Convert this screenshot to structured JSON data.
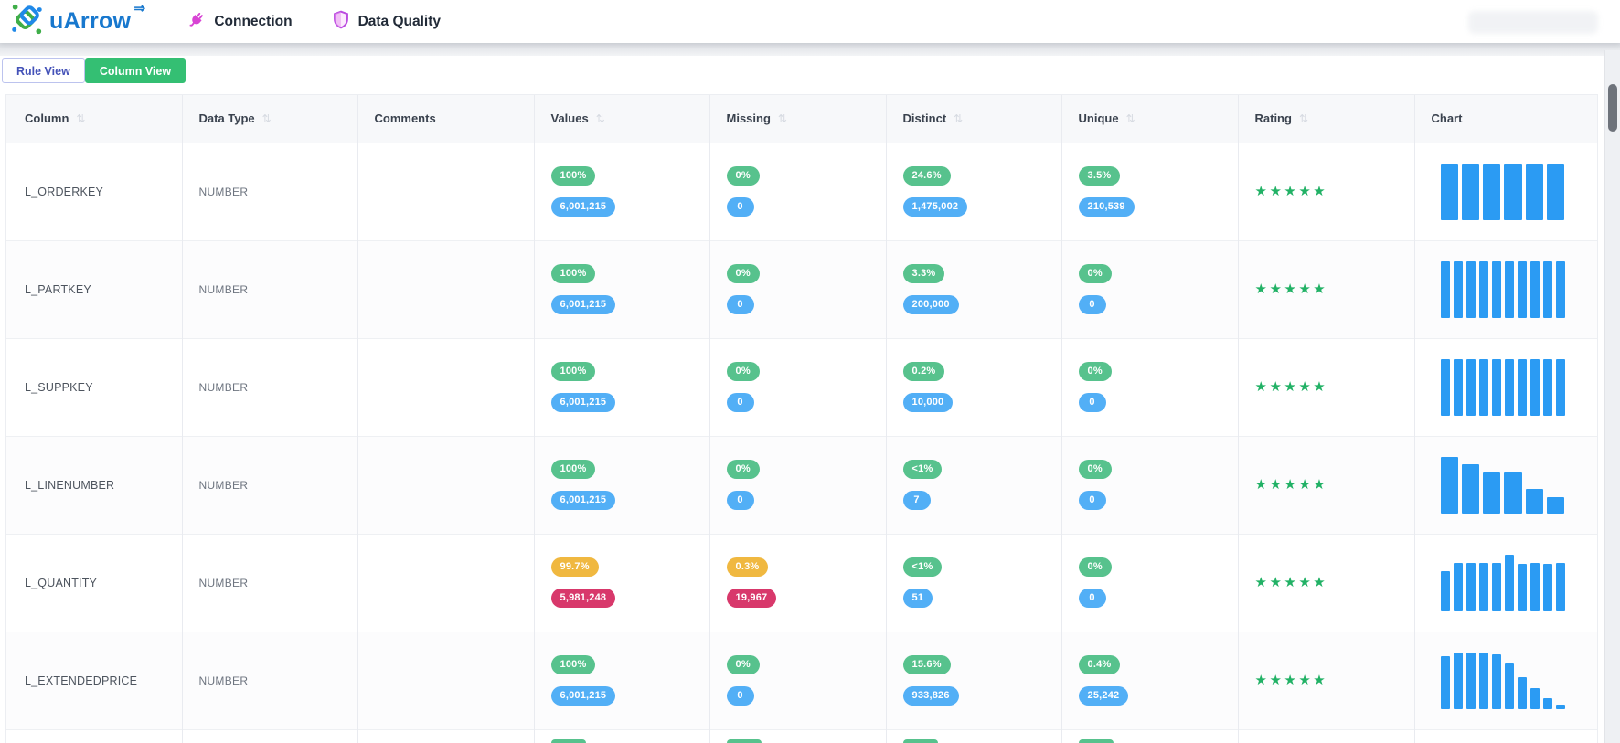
{
  "brand": {
    "name": "uArrow",
    "arrow_glyph": "⇒"
  },
  "nav": {
    "items": [
      {
        "label": "Connection",
        "icon": "plug-icon"
      },
      {
        "label": "Data Quality",
        "icon": "shield-icon"
      }
    ]
  },
  "view_tabs": {
    "rule_view": "Rule View",
    "column_view": "Column View",
    "active": "Column View"
  },
  "table": {
    "sort_icon_glyph": "⇅",
    "star_glyph": "★",
    "headers": [
      {
        "label": "Column",
        "sortable": true
      },
      {
        "label": "Data Type",
        "sortable": true
      },
      {
        "label": "Comments",
        "sortable": false
      },
      {
        "label": "Values",
        "sortable": true
      },
      {
        "label": "Missing",
        "sortable": true
      },
      {
        "label": "Distinct",
        "sortable": true
      },
      {
        "label": "Unique",
        "sortable": true
      },
      {
        "label": "Rating",
        "sortable": true
      },
      {
        "label": "Chart",
        "sortable": false
      }
    ],
    "rows": [
      {
        "column": "L_ORDERKEY",
        "data_type": "NUMBER",
        "comments": "",
        "values": {
          "percent": "100%",
          "percent_color": "green",
          "count": "6,001,215",
          "count_color": "blue"
        },
        "missing": {
          "percent": "0%",
          "percent_color": "green",
          "count": "0",
          "count_color": "blue"
        },
        "distinct": {
          "percent": "24.6%",
          "percent_color": "green",
          "count": "1,475,002",
          "count_color": "blue"
        },
        "unique": {
          "percent": "3.5%",
          "percent_color": "green",
          "count": "210,539",
          "count_color": "blue"
        },
        "rating": 5,
        "chart_bars": [
          100,
          100,
          100,
          100,
          100,
          100
        ]
      },
      {
        "column": "L_PARTKEY",
        "data_type": "NUMBER",
        "comments": "",
        "values": {
          "percent": "100%",
          "percent_color": "green",
          "count": "6,001,215",
          "count_color": "blue"
        },
        "missing": {
          "percent": "0%",
          "percent_color": "green",
          "count": "0",
          "count_color": "blue"
        },
        "distinct": {
          "percent": "3.3%",
          "percent_color": "green",
          "count": "200,000",
          "count_color": "blue"
        },
        "unique": {
          "percent": "0%",
          "percent_color": "green",
          "count": "0",
          "count_color": "blue"
        },
        "rating": 5,
        "chart_bars": [
          100,
          100,
          100,
          100,
          100,
          100,
          100,
          100,
          100,
          100
        ]
      },
      {
        "column": "L_SUPPKEY",
        "data_type": "NUMBER",
        "comments": "",
        "values": {
          "percent": "100%",
          "percent_color": "green",
          "count": "6,001,215",
          "count_color": "blue"
        },
        "missing": {
          "percent": "0%",
          "percent_color": "green",
          "count": "0",
          "count_color": "blue"
        },
        "distinct": {
          "percent": "0.2%",
          "percent_color": "green",
          "count": "10,000",
          "count_color": "blue"
        },
        "unique": {
          "percent": "0%",
          "percent_color": "green",
          "count": "0",
          "count_color": "blue"
        },
        "rating": 5,
        "chart_bars": [
          100,
          100,
          100,
          100,
          100,
          100,
          100,
          100,
          100,
          100
        ]
      },
      {
        "column": "L_LINENUMBER",
        "data_type": "NUMBER",
        "comments": "",
        "values": {
          "percent": "100%",
          "percent_color": "green",
          "count": "6,001,215",
          "count_color": "blue"
        },
        "missing": {
          "percent": "0%",
          "percent_color": "green",
          "count": "0",
          "count_color": "blue"
        },
        "distinct": {
          "percent": "<1%",
          "percent_color": "green",
          "count": "7",
          "count_color": "blue"
        },
        "unique": {
          "percent": "0%",
          "percent_color": "green",
          "count": "0",
          "count_color": "blue"
        },
        "rating": 5,
        "chart_bars": [
          100,
          86,
          72,
          72,
          43,
          29
        ]
      },
      {
        "column": "L_QUANTITY",
        "data_type": "NUMBER",
        "comments": "",
        "values": {
          "percent": "99.7%",
          "percent_color": "amber",
          "count": "5,981,248",
          "count_color": "red"
        },
        "missing": {
          "percent": "0.3%",
          "percent_color": "amber",
          "count": "19,967",
          "count_color": "red"
        },
        "distinct": {
          "percent": "<1%",
          "percent_color": "green",
          "count": "51",
          "count_color": "blue"
        },
        "unique": {
          "percent": "0%",
          "percent_color": "green",
          "count": "0",
          "count_color": "blue"
        },
        "rating": 5,
        "chart_bars": [
          70,
          84,
          84,
          84,
          84,
          100,
          83,
          84,
          83,
          84
        ]
      },
      {
        "column": "L_EXTENDEDPRICE",
        "data_type": "NUMBER",
        "comments": "",
        "values": {
          "percent": "100%",
          "percent_color": "green",
          "count": "6,001,215",
          "count_color": "blue"
        },
        "missing": {
          "percent": "0%",
          "percent_color": "green",
          "count": "0",
          "count_color": "blue"
        },
        "distinct": {
          "percent": "15.6%",
          "percent_color": "green",
          "count": "933,826",
          "count_color": "blue"
        },
        "unique": {
          "percent": "0.4%",
          "percent_color": "green",
          "count": "25,242",
          "count_color": "blue"
        },
        "rating": 5,
        "chart_bars": [
          93,
          99,
          99,
          100,
          96,
          80,
          56,
          37,
          19,
          7
        ]
      }
    ],
    "partial_next_row": {
      "badge_columns": [
        "values",
        "missing",
        "distinct",
        "unique"
      ],
      "badge_color": "green"
    }
  },
  "colors": {
    "badge_green": "#57c28d",
    "badge_blue": "#52aff6",
    "badge_amber": "#f0b840",
    "badge_red": "#d8386b",
    "chart_bar_blue": "#2b9bf3",
    "star_green": "#21b165",
    "active_tab_green": "#34bf73",
    "rule_tab_blue": "#4452b8",
    "brand_blue": "#1878ce",
    "plug_magenta": "#d844d4",
    "shield_violet": "#bb4be0"
  }
}
